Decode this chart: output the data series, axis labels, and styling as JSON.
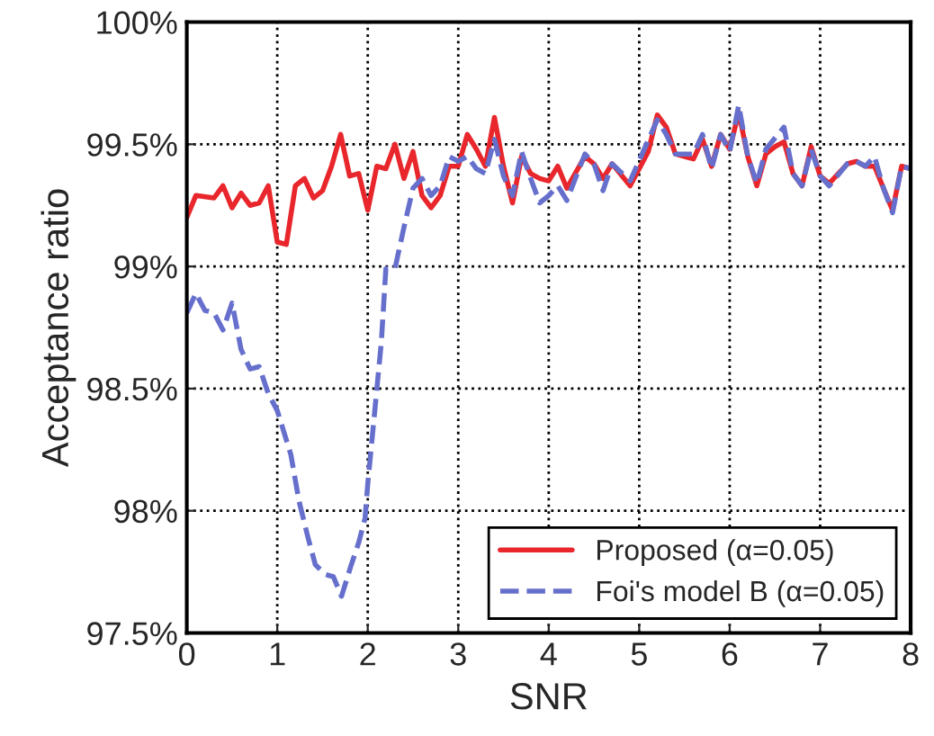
{
  "chart_data": {
    "type": "line",
    "xlabel": "SNR",
    "ylabel": "Acceptance ratio",
    "xlim": [
      0,
      8
    ],
    "ylim": [
      97.5,
      100
    ],
    "xticks": [
      0,
      1,
      2,
      3,
      4,
      5,
      6,
      7,
      8
    ],
    "yticks": [
      {
        "value": 97.5,
        "label": "97.5%"
      },
      {
        "value": 98,
        "label": "98%"
      },
      {
        "value": 98.5,
        "label": "98.5%"
      },
      {
        "value": 99,
        "label": "99%"
      },
      {
        "value": 99.5,
        "label": "99.5%"
      },
      {
        "value": 100,
        "label": "100%"
      }
    ],
    "grid": true,
    "legend": "bottom right",
    "marker": "none",
    "series": [
      {
        "name": "Proposed (α=0.05)",
        "color": "#e8262b",
        "line_style": "solid",
        "x": [
          0,
          0.1,
          0.3,
          0.4,
          0.5,
          0.6,
          0.7,
          0.8,
          0.9,
          1.0,
          1.1,
          1.2,
          1.3,
          1.4,
          1.5,
          1.6,
          1.7,
          1.8,
          1.9,
          2.0,
          2.1,
          2.2,
          2.3,
          2.4,
          2.5,
          2.6,
          2.7,
          2.8,
          2.9,
          3.0,
          3.1,
          3.2,
          3.3,
          3.4,
          3.5,
          3.6,
          3.7,
          3.8,
          3.9,
          4.0,
          4.1,
          4.2,
          4.4,
          4.5,
          4.6,
          4.7,
          4.9,
          5.1,
          5.2,
          5.3,
          5.4,
          5.6,
          5.7,
          5.8,
          5.9,
          6.0,
          6.1,
          6.2,
          6.3,
          6.4,
          6.5,
          6.6,
          6.7,
          6.8,
          6.9,
          7.0,
          7.1,
          7.3,
          7.4,
          7.5,
          7.6,
          7.7,
          7.8,
          7.9,
          8.0
        ],
        "values": [
          99.2,
          99.29,
          99.28,
          99.33,
          99.24,
          99.3,
          99.25,
          99.26,
          99.33,
          99.1,
          99.09,
          99.33,
          99.36,
          99.28,
          99.31,
          99.41,
          99.54,
          99.37,
          99.38,
          99.23,
          99.41,
          99.4,
          99.5,
          99.36,
          99.47,
          99.29,
          99.24,
          99.29,
          99.41,
          99.41,
          99.54,
          99.48,
          99.41,
          99.61,
          99.41,
          99.26,
          99.45,
          99.38,
          99.36,
          99.35,
          99.41,
          99.32,
          99.45,
          99.42,
          99.36,
          99.42,
          99.33,
          99.47,
          99.62,
          99.57,
          99.46,
          99.44,
          99.52,
          99.41,
          99.54,
          99.48,
          99.63,
          99.45,
          99.33,
          99.46,
          99.49,
          99.51,
          99.38,
          99.33,
          99.49,
          99.37,
          99.34,
          99.42,
          99.43,
          99.41,
          99.41,
          99.32,
          99.23,
          99.41,
          99.4
        ]
      },
      {
        "name": "Foi's model B (α=0.05)",
        "color": "#6670cc",
        "line_style": "dashed",
        "x": [
          0,
          0.1,
          0.2,
          0.3,
          0.4,
          0.5,
          0.6,
          0.7,
          0.8,
          0.9,
          1.0,
          1.15,
          1.24,
          1.34,
          1.42,
          1.53,
          1.62,
          1.71,
          1.81,
          1.9,
          1.97,
          2.0,
          2.15,
          2.2,
          2.3,
          2.4,
          2.5,
          2.6,
          2.7,
          2.8,
          2.9,
          3.0,
          3.1,
          3.2,
          3.3,
          3.4,
          3.5,
          3.6,
          3.7,
          3.8,
          3.9,
          4.0,
          4.1,
          4.2,
          4.4,
          4.5,
          4.6,
          4.7,
          4.9,
          5.2,
          5.3,
          5.4,
          5.6,
          5.7,
          5.8,
          5.9,
          6.0,
          6.1,
          6.2,
          6.3,
          6.4,
          6.6,
          6.7,
          6.8,
          6.9,
          7.0,
          7.1,
          7.3,
          7.4,
          7.5,
          7.6,
          7.7,
          7.8,
          7.9,
          8.0
        ],
        "values": [
          98.81,
          98.89,
          98.82,
          98.81,
          98.74,
          98.85,
          98.66,
          98.58,
          98.59,
          98.48,
          98.41,
          98.23,
          98.04,
          97.89,
          97.78,
          97.74,
          97.73,
          97.65,
          97.77,
          97.87,
          97.97,
          98.11,
          98.69,
          98.99,
          98.99,
          99.16,
          99.32,
          99.36,
          99.29,
          99.33,
          99.45,
          99.43,
          99.45,
          99.4,
          99.38,
          99.52,
          99.37,
          99.29,
          99.47,
          99.36,
          99.26,
          99.29,
          99.33,
          99.27,
          99.46,
          99.42,
          99.31,
          99.42,
          99.35,
          99.6,
          99.54,
          99.46,
          99.46,
          99.54,
          99.4,
          99.54,
          99.47,
          99.66,
          99.45,
          99.34,
          99.48,
          99.57,
          99.38,
          99.33,
          99.48,
          99.37,
          99.33,
          99.42,
          99.43,
          99.41,
          99.45,
          99.32,
          99.22,
          99.41,
          99.4
        ]
      }
    ]
  }
}
